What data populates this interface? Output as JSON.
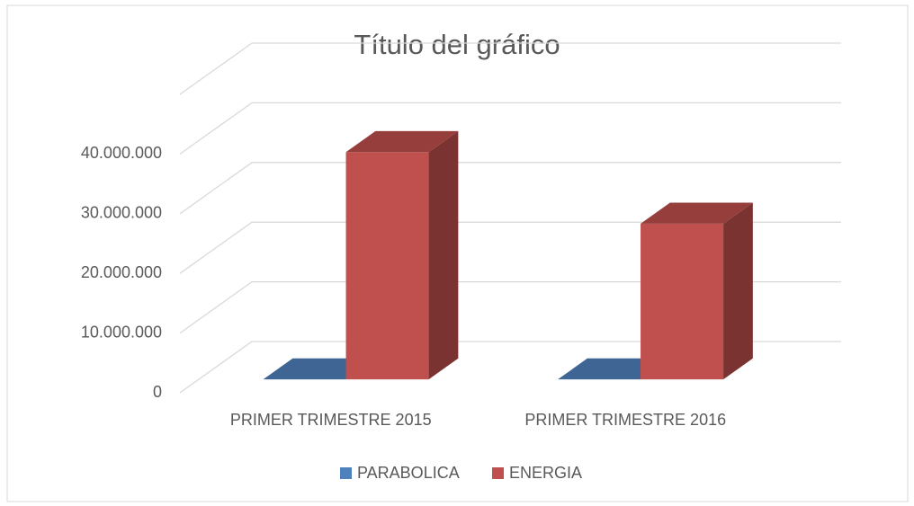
{
  "chart_data": {
    "type": "bar3d",
    "title": "Título del gráfico",
    "categories": [
      "PRIMER TRIMESTRE 2015",
      "PRIMER TRIMESTRE 2016"
    ],
    "series": [
      {
        "name": "PARABOLICA",
        "color": "#4f81bd",
        "values": [
          0,
          0
        ]
      },
      {
        "name": "ENERGIA",
        "color": "#c0504d",
        "values": [
          38100000,
          26100000
        ]
      }
    ],
    "ylim": [
      0,
      50000000
    ],
    "yticks": [
      {
        "value": 0,
        "label": "0"
      },
      {
        "value": 10000000,
        "label": "10.000.000"
      },
      {
        "value": 20000000,
        "label": "20.000.000"
      },
      {
        "value": 30000000,
        "label": "30.000.000"
      },
      {
        "value": 40000000,
        "label": "40.000.000"
      }
    ],
    "grid": true,
    "legend": "bottom"
  }
}
